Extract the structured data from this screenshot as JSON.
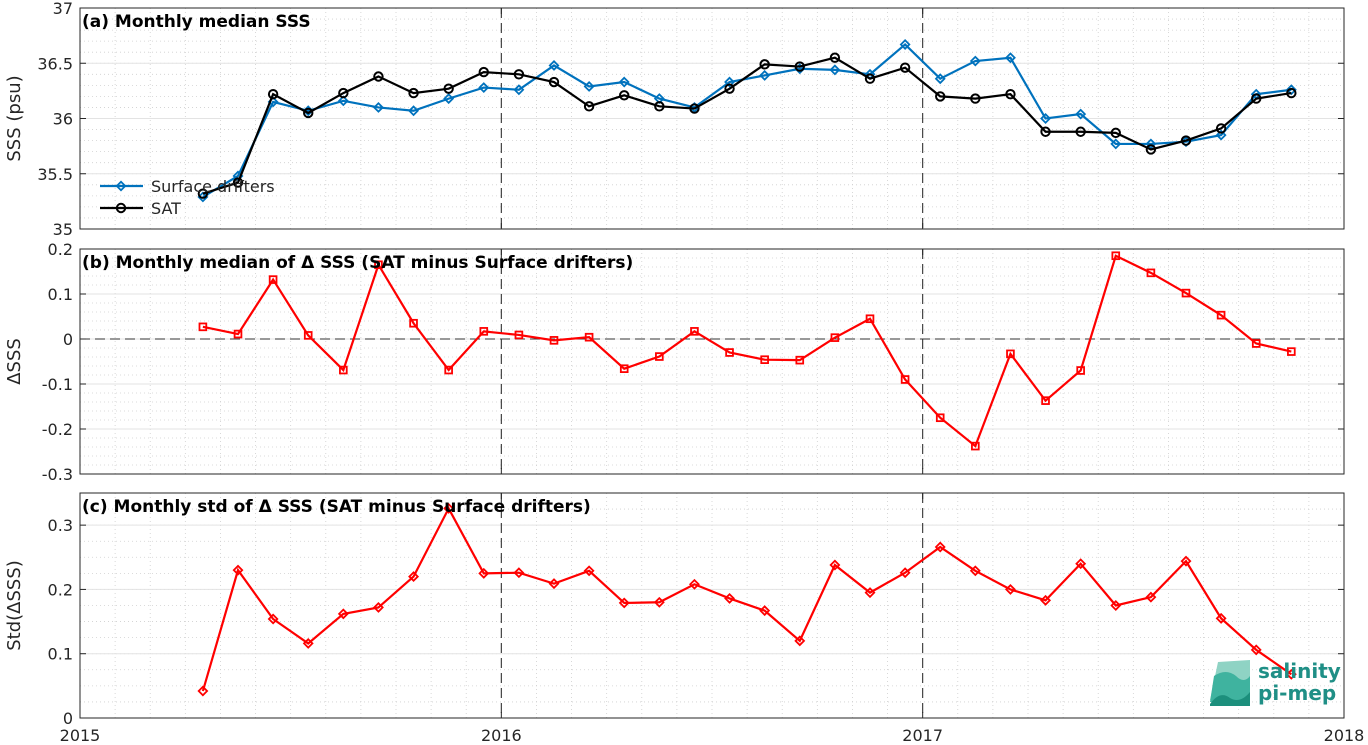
{
  "chart_data": [
    {
      "type": "line",
      "title": "(a) Monthly median SSS",
      "ylabel": "SSS (psu)",
      "ylim": [
        35,
        37
      ],
      "yticks": [
        "35",
        "35.5",
        "36",
        "36.5",
        "37"
      ],
      "grid": true,
      "legend": "bottom-left",
      "series": [
        {
          "name": "Surface drifters",
          "color": "#0072bd",
          "marker": "diamond",
          "x": [
            "2015-04",
            "2015-05",
            "2015-06",
            "2015-07",
            "2015-08",
            "2015-09",
            "2015-10",
            "2015-11",
            "2015-12",
            "2016-01",
            "2016-02",
            "2016-03",
            "2016-04",
            "2016-05",
            "2016-06",
            "2016-07",
            "2016-08",
            "2016-09",
            "2016-10",
            "2016-11",
            "2016-12",
            "2017-01",
            "2017-02",
            "2017-03",
            "2017-04",
            "2017-05",
            "2017-06",
            "2017-07",
            "2017-08",
            "2017-09",
            "2017-10",
            "2017-11"
          ],
          "values": [
            35.29,
            35.48,
            36.15,
            36.07,
            36.16,
            36.1,
            36.07,
            36.18,
            36.28,
            36.26,
            36.48,
            36.29,
            36.33,
            36.18,
            36.1,
            36.33,
            36.39,
            36.45,
            36.44,
            36.4,
            36.67,
            36.36,
            36.52,
            36.55,
            36.0,
            36.04,
            35.77,
            35.77,
            35.79,
            35.85,
            36.22,
            36.26
          ]
        },
        {
          "name": "SAT",
          "color": "#000000",
          "marker": "circle",
          "x": [
            "2015-04",
            "2015-05",
            "2015-06",
            "2015-07",
            "2015-08",
            "2015-09",
            "2015-10",
            "2015-11",
            "2015-12",
            "2016-01",
            "2016-02",
            "2016-03",
            "2016-04",
            "2016-05",
            "2016-06",
            "2016-07",
            "2016-08",
            "2016-09",
            "2016-10",
            "2016-11",
            "2016-12",
            "2017-01",
            "2017-02",
            "2017-03",
            "2017-04",
            "2017-05",
            "2017-06",
            "2017-07",
            "2017-08",
            "2017-09",
            "2017-10",
            "2017-11"
          ],
          "values": [
            35.32,
            35.42,
            36.22,
            36.05,
            36.23,
            36.38,
            36.23,
            36.27,
            36.42,
            36.4,
            36.33,
            36.11,
            36.21,
            36.11,
            36.09,
            36.27,
            36.49,
            36.47,
            36.55,
            36.36,
            36.46,
            36.2,
            36.18,
            36.22,
            35.88,
            35.88,
            35.87,
            35.72,
            35.8,
            35.91,
            36.18,
            36.23
          ]
        }
      ]
    },
    {
      "type": "line",
      "title": "(b) Monthly median of Δ SSS (SAT minus Surface drifters)",
      "ylabel": "ΔSSS",
      "ylim": [
        -0.3,
        0.2
      ],
      "yticks": [
        "-0.3",
        "-0.2",
        "-0.1",
        "0",
        "0.1",
        "0.2"
      ],
      "grid": true,
      "series": [
        {
          "color": "#ff0000",
          "marker": "square",
          "x": [
            "2015-04",
            "2015-05",
            "2015-06",
            "2015-07",
            "2015-08",
            "2015-09",
            "2015-10",
            "2015-11",
            "2015-12",
            "2016-01",
            "2016-02",
            "2016-03",
            "2016-04",
            "2016-05",
            "2016-06",
            "2016-07",
            "2016-08",
            "2016-09",
            "2016-10",
            "2016-11",
            "2016-12",
            "2017-01",
            "2017-02",
            "2017-03",
            "2017-04",
            "2017-05",
            "2017-06",
            "2017-07",
            "2017-08",
            "2017-09",
            "2017-10",
            "2017-11"
          ],
          "values": [
            0.027,
            0.011,
            0.132,
            0.008,
            -0.069,
            0.165,
            0.035,
            -0.069,
            0.017,
            0.009,
            -0.003,
            0.004,
            -0.066,
            -0.039,
            0.017,
            -0.03,
            -0.046,
            -0.047,
            0.003,
            0.045,
            -0.09,
            -0.175,
            -0.238,
            -0.033,
            -0.137,
            -0.07,
            0.185,
            0.147,
            0.102,
            0.053,
            -0.01,
            -0.028
          ]
        }
      ]
    },
    {
      "type": "line",
      "title": "(c) Monthly std of Δ SSS (SAT minus Surface drifters)",
      "ylabel": "Std(ΔSSS)",
      "ylim": [
        0,
        0.35
      ],
      "yticks": [
        "0",
        "0.1",
        "0.2",
        "0.3"
      ],
      "xlim": [
        2015,
        2018
      ],
      "xticks": [
        "2015",
        "2016",
        "2017",
        "2018"
      ],
      "grid": true,
      "series": [
        {
          "color": "#ff0000",
          "marker": "diamond",
          "x": [
            "2015-04",
            "2015-05",
            "2015-06",
            "2015-07",
            "2015-08",
            "2015-09",
            "2015-10",
            "2015-11",
            "2015-12",
            "2016-01",
            "2016-02",
            "2016-03",
            "2016-04",
            "2016-05",
            "2016-06",
            "2016-07",
            "2016-08",
            "2016-09",
            "2016-10",
            "2016-11",
            "2016-12",
            "2017-01",
            "2017-02",
            "2017-03",
            "2017-04",
            "2017-05",
            "2017-06",
            "2017-07",
            "2017-08",
            "2017-09",
            "2017-10",
            "2017-11"
          ],
          "values": [
            0.042,
            0.23,
            0.154,
            0.116,
            0.162,
            0.172,
            0.22,
            0.326,
            0.225,
            0.226,
            0.209,
            0.229,
            0.179,
            0.18,
            0.208,
            0.186,
            0.167,
            0.12,
            0.238,
            0.195,
            0.226,
            0.266,
            0.229,
            0.2,
            0.183,
            0.24,
            0.175,
            0.188,
            0.244,
            0.155,
            0.106,
            0.068
          ]
        }
      ]
    }
  ],
  "logo": {
    "line1": "salinity",
    "line2": "pi-mep"
  }
}
